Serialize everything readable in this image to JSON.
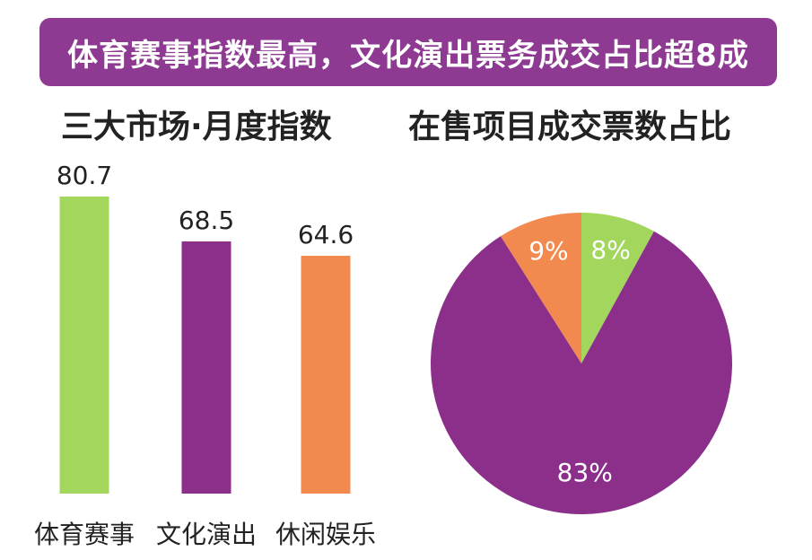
{
  "header": {
    "title": "体育赛事指数最高，文化演出票务成交占比超8成"
  },
  "chart_data": [
    {
      "type": "bar",
      "title": "三大市场·月度指数",
      "categories": [
        "体育赛事",
        "文化演出",
        "休闲娱乐"
      ],
      "values": [
        80.7,
        68.5,
        64.6
      ],
      "value_labels": [
        "80.7",
        "68.5",
        "64.6"
      ],
      "colors": [
        "#a3d65c",
        "#8b2f8b",
        "#f28a4f"
      ],
      "ylim": [
        0,
        90
      ],
      "grid": false,
      "legend": "none"
    },
    {
      "type": "pie",
      "title": "在售项目成交票数占比",
      "slices": [
        {
          "label": "8%",
          "value": 8,
          "color": "#a3d65c"
        },
        {
          "label": "83%",
          "value": 83,
          "color": "#8b2f8b"
        },
        {
          "label": "9%",
          "value": 9,
          "color": "#f28a4f"
        }
      ],
      "legend": "none"
    }
  ]
}
